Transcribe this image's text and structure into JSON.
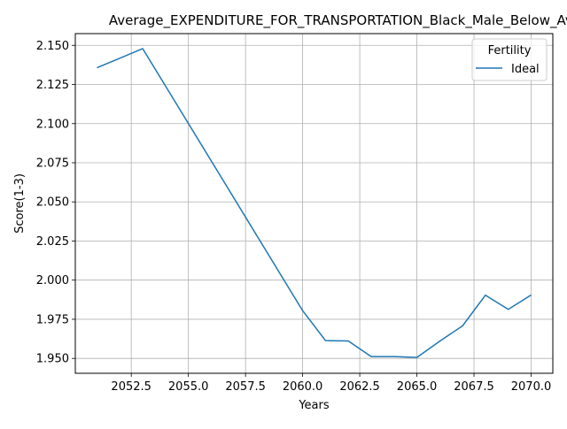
{
  "chart_data": {
    "type": "line",
    "title": "Average_EXPENDITURE_FOR_TRANSPORTATION_Black_Male_Below_Average",
    "xlabel": "Years",
    "ylabel": "Score(1-3)",
    "xlim": [
      2050.05,
      2070.95
    ],
    "ylim": [
      1.9405,
      2.1575
    ],
    "xticks": [
      2052.5,
      2055.0,
      2057.5,
      2060.0,
      2062.5,
      2065.0,
      2067.5,
      2070.0
    ],
    "xtick_labels": [
      "2052.5",
      "2055.0",
      "2057.5",
      "2060.0",
      "2062.5",
      "2065.0",
      "2067.5",
      "2070.0"
    ],
    "yticks": [
      1.95,
      1.975,
      2.0,
      2.025,
      2.05,
      2.075,
      2.1,
      2.125,
      2.15
    ],
    "ytick_labels": [
      "1.950",
      "1.975",
      "2.000",
      "2.025",
      "2.050",
      "2.075",
      "2.100",
      "2.125",
      "2.150"
    ],
    "grid": true,
    "legend": {
      "title": "Fertility",
      "placement": "top-right"
    },
    "series": [
      {
        "name": "Ideal",
        "color": "#1f77b4",
        "x": [
          2051,
          2053,
          2060,
          2061,
          2062,
          2063,
          2064,
          2065,
          2066,
          2067,
          2068,
          2069,
          2070
        ],
        "y": [
          2.1357,
          2.1479,
          1.9805,
          1.9614,
          1.9611,
          1.9512,
          1.9512,
          1.9506,
          1.961,
          1.9708,
          1.9904,
          1.9813,
          1.9905
        ]
      }
    ]
  }
}
